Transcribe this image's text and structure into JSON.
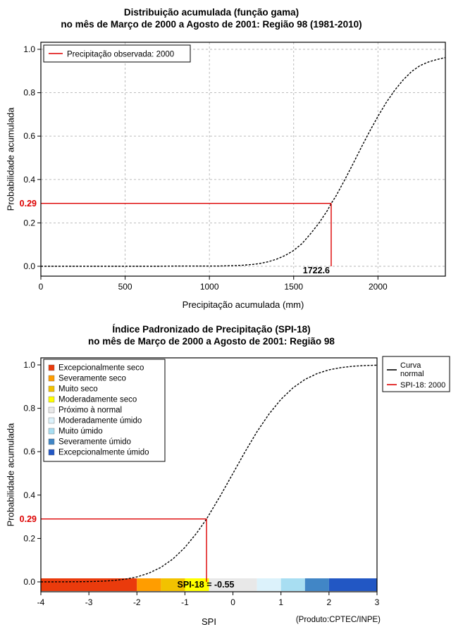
{
  "accent": "#dd0000",
  "background": "#ffffff",
  "chart_data": [
    {
      "type": "line",
      "title": "Distribuição acumulada (função gama)",
      "subtitle": "no mês de Março de 2000 a Agosto de 2001: Região 98 (1981-2010)",
      "xlabel": "Precipitação acumulada (mm)",
      "ylabel": "Probabilidade acumulada",
      "xlim": [
        0,
        2400
      ],
      "ylim": [
        0,
        1
      ],
      "grid": true,
      "xticks": [
        {
          "v": 0,
          "label": "0"
        },
        {
          "v": 500,
          "label": "500"
        },
        {
          "v": 1000,
          "label": "1000"
        },
        {
          "v": 1500,
          "label": "1500"
        },
        {
          "v": 2000,
          "label": "2000"
        }
      ],
      "yticks": [
        {
          "v": 0,
          "label": "0.0"
        },
        {
          "v": 0.2,
          "label": "0.2"
        },
        {
          "v": 0.4,
          "label": "0.4"
        },
        {
          "v": 0.6,
          "label": "0.6"
        },
        {
          "v": 0.8,
          "label": "0.8"
        },
        {
          "v": 1,
          "label": "1.0"
        }
      ],
      "legend": [
        {
          "label": "Precipitação observada: 2000",
          "color": "#dd0000"
        }
      ],
      "reference": {
        "x": 1722.6,
        "y": 0.29
      },
      "annotations": {
        "y_value_label": "0.29",
        "x_value_label": "1722.6"
      },
      "series": [
        {
          "color": "#000000",
          "points": [
            [
              0,
              0
            ],
            [
              100,
              0
            ],
            [
              200,
              0
            ],
            [
              300,
              0
            ],
            [
              400,
              0
            ],
            [
              500,
              0
            ],
            [
              600,
              0
            ],
            [
              700,
              0
            ],
            [
              800,
              0.001
            ],
            [
              900,
              0.001
            ],
            [
              1000,
              0.001
            ],
            [
              1050,
              0.001
            ],
            [
              1100,
              0.002
            ],
            [
              1150,
              0.003
            ],
            [
              1200,
              0.005
            ],
            [
              1250,
              0.008
            ],
            [
              1300,
              0.013
            ],
            [
              1350,
              0.021
            ],
            [
              1400,
              0.033
            ],
            [
              1450,
              0.05
            ],
            [
              1500,
              0.073
            ],
            [
              1550,
              0.105
            ],
            [
              1600,
              0.15
            ],
            [
              1650,
              0.199
            ],
            [
              1700,
              0.257
            ],
            [
              1722.6,
              0.29
            ],
            [
              1750,
              0.322
            ],
            [
              1800,
              0.394
            ],
            [
              1850,
              0.469
            ],
            [
              1900,
              0.546
            ],
            [
              1950,
              0.621
            ],
            [
              2000,
              0.691
            ],
            [
              2050,
              0.756
            ],
            [
              2100,
              0.812
            ],
            [
              2150,
              0.859
            ],
            [
              2200,
              0.898
            ],
            [
              2250,
              0.925
            ],
            [
              2300,
              0.942
            ],
            [
              2350,
              0.953
            ],
            [
              2400,
              0.962
            ]
          ]
        }
      ]
    },
    {
      "type": "line",
      "title": "Índice Padronizado de Precipitação (SPI-18)",
      "subtitle": "no mês de Março de 2000 a Agosto de 2001: Região 98",
      "xlabel": "SPI",
      "ylabel": "Probabilidade acumulada",
      "credit": "(Produto:CPTEC/INPE)",
      "xlim": [
        -4,
        3
      ],
      "ylim": [
        0,
        1
      ],
      "grid": false,
      "xticks": [
        {
          "v": -4,
          "label": "-4"
        },
        {
          "v": -3,
          "label": "-3"
        },
        {
          "v": -2,
          "label": "-2"
        },
        {
          "v": -1,
          "label": "-1"
        },
        {
          "v": 0,
          "label": "0"
        },
        {
          "v": 1,
          "label": "1"
        },
        {
          "v": 2,
          "label": "2"
        },
        {
          "v": 3,
          "label": "3"
        }
      ],
      "yticks": [
        {
          "v": 0,
          "label": "0.0"
        },
        {
          "v": 0.2,
          "label": "0.2"
        },
        {
          "v": 0.4,
          "label": "0.4"
        },
        {
          "v": 0.6,
          "label": "0.6"
        },
        {
          "v": 0.8,
          "label": "0.8"
        },
        {
          "v": 1,
          "label": "1.0"
        }
      ],
      "category_legend": [
        {
          "label": "Excepcionalmente seco",
          "color": "#ea3b0c"
        },
        {
          "label": "Severamente seco",
          "color": "#ff9d00"
        },
        {
          "label": "Muito seco",
          "color": "#f2c200"
        },
        {
          "label": "Moderadamente seco",
          "color": "#ffff00"
        },
        {
          "label": "Próximo à normal",
          "color": "#e8e8e8"
        },
        {
          "label": "Moderadamente úmido",
          "color": "#dcf2fb"
        },
        {
          "label": "Muito úmido",
          "color": "#a8def2"
        },
        {
          "label": "Severamente úmido",
          "color": "#4186c6"
        },
        {
          "label": "Excepcionalmente úmido",
          "color": "#2257c4"
        }
      ],
      "line_legend": [
        {
          "label": "Curva normal",
          "color": "#000000"
        },
        {
          "label": "SPI-18: 2000",
          "color": "#dd0000"
        }
      ],
      "color_bar": [
        {
          "from": -4,
          "to": -2,
          "color": "#ea3b0c"
        },
        {
          "from": -2,
          "to": -1.5,
          "color": "#ff9d00"
        },
        {
          "from": -1.5,
          "to": -1,
          "color": "#f2c200"
        },
        {
          "from": -1,
          "to": -0.5,
          "color": "#ffff00"
        },
        {
          "from": -0.5,
          "to": 0.5,
          "color": "#e8e8e8"
        },
        {
          "from": 0.5,
          "to": 1,
          "color": "#dcf2fb"
        },
        {
          "from": 1,
          "to": 1.5,
          "color": "#a8def2"
        },
        {
          "from": 1.5,
          "to": 2,
          "color": "#4186c6"
        },
        {
          "from": 2,
          "to": 3,
          "color": "#2257c4"
        }
      ],
      "reference": {
        "x": -0.55,
        "y": 0.29
      },
      "annotations": {
        "y_value_label": "0.29",
        "bar_label": "SPI-18 = -0.55"
      },
      "series": [
        {
          "name": "Curva normal",
          "color": "#000000",
          "points": [
            [
              -4,
              0.0
            ],
            [
              -3.75,
              0.0001
            ],
            [
              -3.5,
              0.0002
            ],
            [
              -3.25,
              0.0006
            ],
            [
              -3,
              0.0013
            ],
            [
              -2.75,
              0.003
            ],
            [
              -2.5,
              0.0062
            ],
            [
              -2.25,
              0.0122
            ],
            [
              -2,
              0.0228
            ],
            [
              -1.75,
              0.0401
            ],
            [
              -1.5,
              0.0668
            ],
            [
              -1.25,
              0.1056
            ],
            [
              -1,
              0.1587
            ],
            [
              -0.75,
              0.2266
            ],
            [
              -0.55,
              0.29
            ],
            [
              -0.5,
              0.3085
            ],
            [
              -0.25,
              0.4013
            ],
            [
              0,
              0.5
            ],
            [
              0.25,
              0.5987
            ],
            [
              0.5,
              0.6915
            ],
            [
              0.75,
              0.7734
            ],
            [
              1,
              0.8413
            ],
            [
              1.25,
              0.8944
            ],
            [
              1.5,
              0.9332
            ],
            [
              1.75,
              0.9599
            ],
            [
              2,
              0.9772
            ],
            [
              2.25,
              0.9878
            ],
            [
              2.5,
              0.9938
            ],
            [
              2.75,
              0.997
            ],
            [
              3,
              0.9987
            ]
          ]
        }
      ]
    }
  ]
}
